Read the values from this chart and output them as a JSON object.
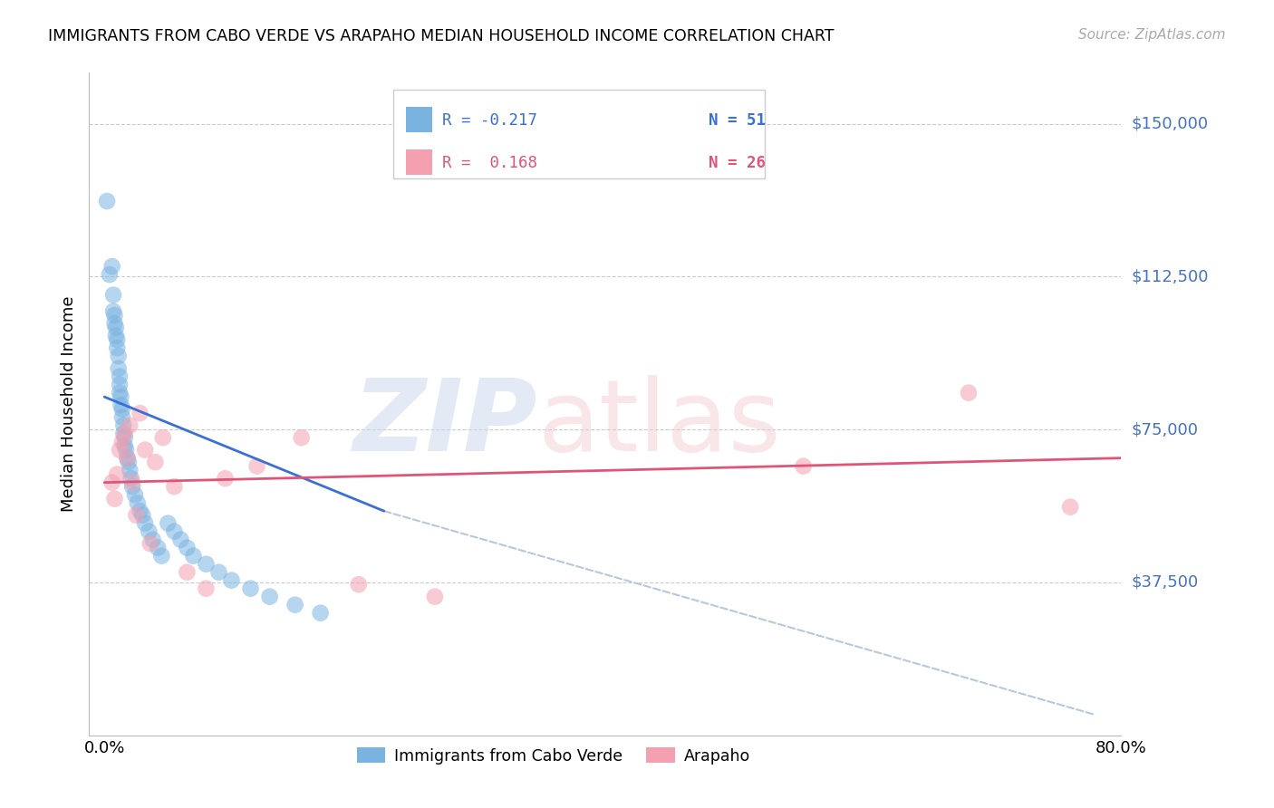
{
  "title": "IMMIGRANTS FROM CABO VERDE VS ARAPAHO MEDIAN HOUSEHOLD INCOME CORRELATION CHART",
  "source": "Source: ZipAtlas.com",
  "ylabel": "Median Household Income",
  "ytick_labels": [
    "$150,000",
    "$112,500",
    "$75,000",
    "$37,500"
  ],
  "ytick_values": [
    150000,
    112500,
    75000,
    37500
  ],
  "ymin": 0,
  "ymax": 162500,
  "xmin": 0.0,
  "xmax": 0.8,
  "blue_color": "#7ab3e0",
  "pink_color": "#f4a0b0",
  "blue_line_color": "#3a6fd8",
  "pink_line_color": "#e05577",
  "dashed_line_color": "#b8c8dc",
  "ytick_color": "#4472c4",
  "cabo_verde_x": [
    0.002,
    0.004,
    0.006,
    0.007,
    0.007,
    0.008,
    0.008,
    0.009,
    0.009,
    0.01,
    0.01,
    0.011,
    0.011,
    0.012,
    0.012,
    0.012,
    0.013,
    0.013,
    0.014,
    0.014,
    0.015,
    0.015,
    0.016,
    0.016,
    0.017,
    0.018,
    0.019,
    0.02,
    0.021,
    0.022,
    0.024,
    0.026,
    0.028,
    0.03,
    0.032,
    0.035,
    0.038,
    0.042,
    0.045,
    0.05,
    0.055,
    0.06,
    0.065,
    0.07,
    0.08,
    0.09,
    0.1,
    0.115,
    0.13,
    0.15,
    0.17
  ],
  "cabo_verde_y": [
    131000,
    113000,
    115000,
    108000,
    104000,
    103000,
    101000,
    100000,
    98000,
    97000,
    95000,
    93000,
    90000,
    88000,
    86000,
    84000,
    83000,
    81000,
    80000,
    78000,
    76000,
    74000,
    73000,
    71000,
    70000,
    68000,
    67000,
    65000,
    63000,
    61000,
    59000,
    57000,
    55000,
    54000,
    52000,
    50000,
    48000,
    46000,
    44000,
    52000,
    50000,
    48000,
    46000,
    44000,
    42000,
    40000,
    38000,
    36000,
    34000,
    32000,
    30000
  ],
  "arapaho_x": [
    0.006,
    0.008,
    0.01,
    0.012,
    0.014,
    0.016,
    0.018,
    0.02,
    0.022,
    0.025,
    0.028,
    0.032,
    0.036,
    0.04,
    0.046,
    0.055,
    0.065,
    0.08,
    0.095,
    0.12,
    0.155,
    0.2,
    0.26,
    0.55,
    0.68,
    0.76
  ],
  "arapaho_y": [
    62000,
    58000,
    64000,
    70000,
    72000,
    74000,
    68000,
    76000,
    62000,
    54000,
    79000,
    70000,
    47000,
    67000,
    73000,
    61000,
    40000,
    36000,
    63000,
    66000,
    73000,
    37000,
    34000,
    66000,
    84000,
    56000
  ],
  "blue_line_x": [
    0.0,
    0.22
  ],
  "blue_line_y": [
    83000,
    55000
  ],
  "pink_line_x": [
    0.0,
    0.8
  ],
  "pink_line_y": [
    62000,
    68000
  ],
  "dash_line_x": [
    0.22,
    0.78
  ],
  "dash_line_y": [
    55000,
    5000
  ]
}
